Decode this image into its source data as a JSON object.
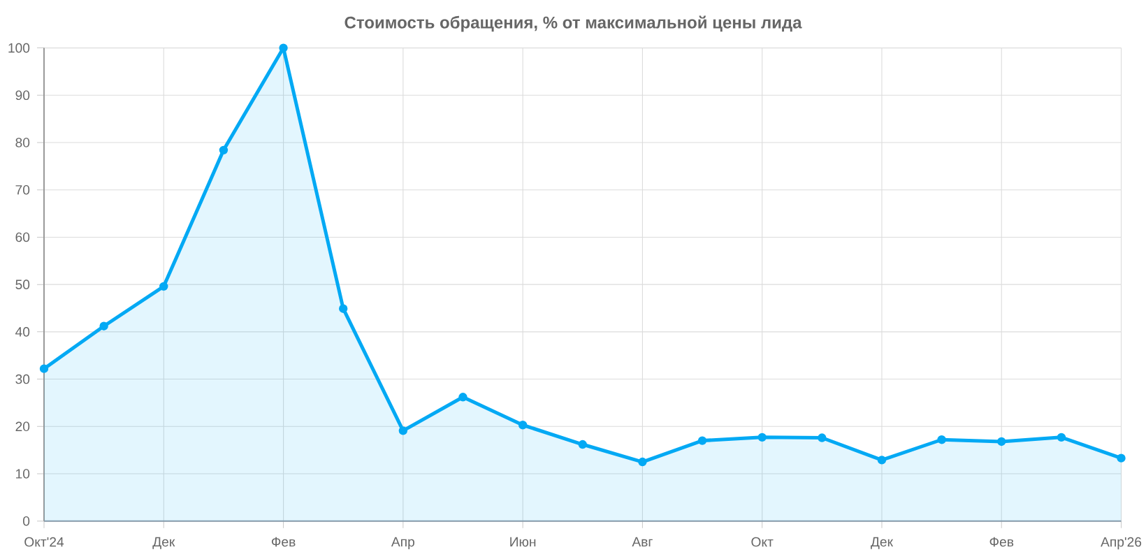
{
  "chart_data": {
    "type": "area",
    "title": "Стоимость обращения, % от максимальной цены лида",
    "categories": [
      "Окт'24",
      null,
      "Дек",
      null,
      "Фев",
      null,
      "Апр",
      null,
      "Июн",
      null,
      "Авг",
      null,
      "Окт",
      null,
      "Дек",
      null,
      "Фев",
      null,
      "Апр'26"
    ],
    "values": [
      32.2,
      41.2,
      49.6,
      78.4,
      100,
      44.9,
      19.1,
      26.2,
      20.3,
      16.2,
      12.5,
      17.0,
      17.7,
      17.6,
      12.9,
      17.2,
      16.8,
      17.7,
      13.3
    ],
    "color": "#03a9f4",
    "marker": "circle",
    "grid": true,
    "ylim": [
      0,
      100
    ],
    "yticks": [
      0,
      10,
      20,
      30,
      40,
      50,
      60,
      70,
      80,
      90,
      100
    ]
  }
}
